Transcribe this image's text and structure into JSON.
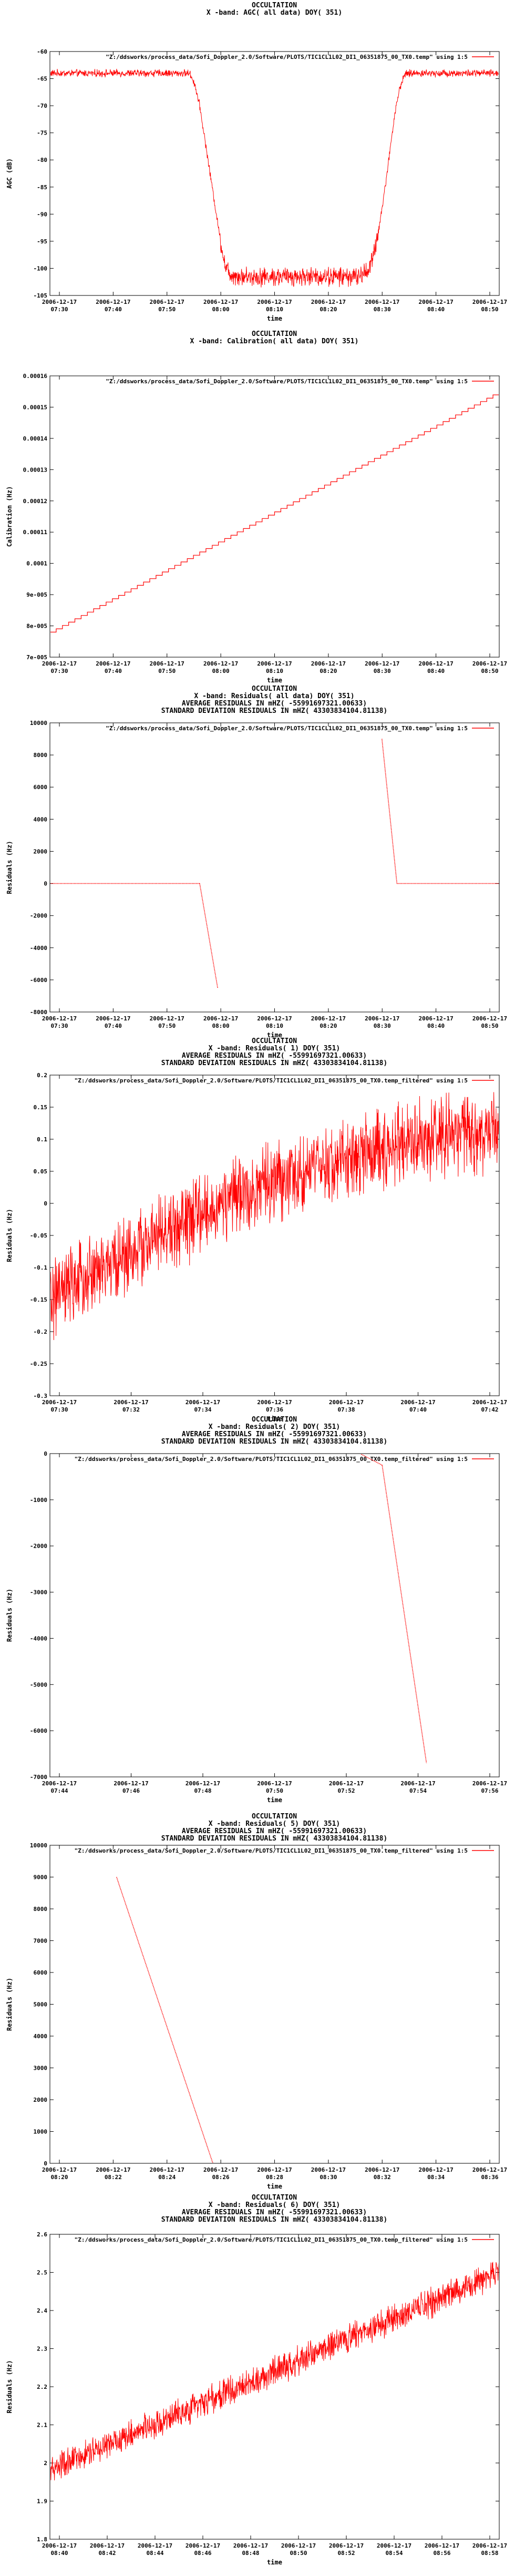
{
  "chart_data": [
    {
      "type": "line",
      "title_lines": [
        "OCCULTATION",
        "X -band: AGC( all data) DOY( 351)"
      ],
      "xlabel": "time",
      "ylabel": "AGC (dB)",
      "legend": "\"Z:/ddsworks/process_data/Sofi_Doppler_2.0/Software/PLOTS/TIC1CL1L02_DI1_06351875_00_TX0.temp\" using 1:5",
      "legend_position": "top-right",
      "grid": false,
      "x_ticks": [
        "2006-12-17 07:30",
        "2006-12-17 07:40",
        "2006-12-17 07:50",
        "2006-12-17 08:00",
        "2006-12-17 08:10",
        "2006-12-17 08:20",
        "2006-12-17 08:30",
        "2006-12-17 08:40",
        "2006-12-17 08:50"
      ],
      "y_ticks": [
        "-60",
        "-65",
        "-70",
        "-75",
        "-80",
        "-85",
        "-90",
        "-95",
        "-100",
        "-105"
      ],
      "ylim": [
        -105,
        -60
      ],
      "xlim_minutes": [
        450,
        540
      ],
      "trend": {
        "x": [
          450,
          478,
          479,
          480,
          481,
          482,
          483,
          484,
          485,
          486,
          488,
          512,
          514,
          515,
          516,
          517,
          518,
          519,
          520,
          521,
          522,
          540
        ],
        "y": [
          -64,
          -64,
          -66,
          -70,
          -76,
          -82,
          -88,
          -94,
          -99,
          -101,
          -101.5,
          -101.5,
          -100,
          -97,
          -92,
          -86,
          -79,
          -72,
          -67,
          -64.3,
          -64,
          -64
        ]
      },
      "noise": 0.5,
      "noise_ranges": [
        [
          484,
          516,
          1.3
        ]
      ]
    },
    {
      "type": "line",
      "title_lines": [
        "OCCULTATION",
        "X -band: Calibration( all data) DOY( 351)"
      ],
      "xlabel": "time",
      "ylabel": "Calibration (Hz)",
      "legend": "\"Z:/ddsworks/process_data/Sofi_Doppler_2.0/Software/PLOTS/TIC1CL1L02_DI1_06351875_00_TX0.temp\" using 1:5",
      "legend_position": "top-right",
      "grid": false,
      "x_ticks": [
        "2006-12-17 07:30",
        "2006-12-17 07:40",
        "2006-12-17 07:50",
        "2006-12-17 08:00",
        "2006-12-17 08:10",
        "2006-12-17 08:20",
        "2006-12-17 08:30",
        "2006-12-17 08:40",
        "2006-12-17 08:50"
      ],
      "y_ticks": [
        "0.00016",
        "0.00015",
        "0.00014",
        "0.00013",
        "0.00012",
        "0.00011",
        "0.0001",
        "9e-005",
        "8e-005",
        "7e-005"
      ],
      "ylim": [
        7e-05,
        0.00016
      ],
      "xlim_minutes": [
        450,
        540
      ],
      "trend": {
        "x": [
          450,
          540
        ],
        "y": [
          7.8e-05,
          0.000155
        ]
      },
      "noise": 0,
      "step_count": 72
    },
    {
      "type": "scatter",
      "title_lines": [
        "OCCULTATION",
        "X -band: Residuals( all data) DOY( 351)",
        "AVERAGE RESIDUALS IN mHZ( -55991697321.00633)",
        "STANDARD DEVIATION RESIDUALS IN mHZ( 43303834104.81138)"
      ],
      "xlabel": "time",
      "ylabel": "Residuals (Hz)",
      "legend": "\"Z:/ddsworks/process_data/Sofi_Doppler_2.0/Software/PLOTS/TIC1CL1L02_DI1_06351875_00_TX0.temp\" using 1:5",
      "legend_position": "top-right",
      "grid": false,
      "x_ticks": [
        "2006-12-17 07:30",
        "2006-12-17 07:40",
        "2006-12-17 07:50",
        "2006-12-17 08:00",
        "2006-12-17 08:10",
        "2006-12-17 08:20",
        "2006-12-17 08:30",
        "2006-12-17 08:40",
        "2006-12-17 08:50"
      ],
      "y_ticks": [
        "10000",
        "8000",
        "6000",
        "4000",
        "2000",
        "0",
        "-2000",
        "-4000",
        "-6000",
        "-8000"
      ],
      "ylim": [
        -8000,
        10000
      ],
      "xlim_minutes": [
        450,
        540
      ],
      "segments": [
        {
          "x": [
            450,
            480
          ],
          "y": [
            0,
            0
          ]
        },
        {
          "x": [
            480,
            483.6
          ],
          "y": [
            0,
            -6500
          ]
        },
        {
          "x": [
            516.5,
            519.5
          ],
          "y": [
            9000,
            0
          ]
        },
        {
          "x": [
            519.5,
            540
          ],
          "y": [
            0,
            0
          ]
        }
      ]
    },
    {
      "type": "line",
      "title_lines": [
        "OCCULTATION",
        "X -band: Residuals( 1) DOY( 351)",
        "AVERAGE RESIDUALS IN mHZ( -55991697321.00633)",
        "STANDARD DEVIATION RESIDUALS IN mHZ( 43303834104.81138)"
      ],
      "xlabel": "time",
      "ylabel": "Residuals (Hz)",
      "legend": "\"Z:/ddsworks/process_data/Sofi_Doppler_2.0/Software/PLOTS/TIC1CL1L02_DI1_06351875_00_TX0.temp_filtered\" using 1:5",
      "legend_position": "top-right",
      "grid": false,
      "x_ticks": [
        "2006-12-17 07:30",
        "2006-12-17 07:32",
        "2006-12-17 07:34",
        "2006-12-17 07:36",
        "2006-12-17 07:38",
        "2006-12-17 07:40",
        "2006-12-17 07:42"
      ],
      "y_ticks": [
        "0.2",
        "0.15",
        "0.1",
        "0.05",
        "0",
        "-0.05",
        "-0.1",
        "-0.15",
        "-0.2",
        "-0.25",
        "-0.3"
      ],
      "ylim": [
        -0.3,
        0.2
      ],
      "xlim_minutes": [
        450,
        463.5
      ],
      "trend": {
        "x": [
          450,
          453,
          456,
          459,
          461,
          463.5
        ],
        "y": [
          -0.15,
          -0.06,
          0.02,
          0.07,
          0.1,
          0.11
        ]
      },
      "noise": 0.045
    },
    {
      "type": "scatter",
      "title_lines": [
        "OCCULTATION",
        "X -band: Residuals( 2) DOY( 351)",
        "AVERAGE RESIDUALS IN mHZ( -55991697321.00633)",
        "STANDARD DEVIATION RESIDUALS IN mHZ( 43303834104.81138)"
      ],
      "xlabel": "time",
      "ylabel": "Residuals (Hz)",
      "legend": "\"Z:/ddsworks/process_data/Sofi_Doppler_2.0/Software/PLOTS/TIC1CL1L02_DI1_06351875_00_TX0.temp_filtered\" using 1:5",
      "legend_position": "top-right",
      "grid": false,
      "x_ticks": [
        "2006-12-17 07:44",
        "2006-12-17 07:46",
        "2006-12-17 07:48",
        "2006-12-17 07:50",
        "2006-12-17 07:52",
        "2006-12-17 07:54",
        "2006-12-17 07:56"
      ],
      "y_ticks": [
        "0",
        "-1000",
        "-2000",
        "-3000",
        "-4000",
        "-5000",
        "-6000",
        "-7000"
      ],
      "ylim": [
        -7000,
        0
      ],
      "xlim_minutes": [
        463,
        477.2
      ],
      "segments": [
        {
          "x": [
            463,
            472.8
          ],
          "y": [
            0,
            0
          ]
        },
        {
          "x": [
            472.8,
            473.5
          ],
          "y": [
            0,
            -250
          ]
        },
        {
          "x": [
            473.5,
            474.9
          ],
          "y": [
            -250,
            -6700
          ]
        }
      ]
    },
    {
      "type": "scatter",
      "title_lines": [
        "OCCULTATION",
        "X -band: Residuals( 5) DOY( 351)",
        "AVERAGE RESIDUALS IN mHZ( -55991697321.00633)",
        "STANDARD DEVIATION RESIDUALS IN mHZ( 43303834104.81138)"
      ],
      "xlabel": "time",
      "ylabel": "Residuals (Hz)",
      "legend": "\"Z:/ddsworks/process_data/Sofi_Doppler_2.0/Software/PLOTS/TIC1CL1L02_DI1_06351875_00_TX0.temp_filtered\" using 1:5",
      "legend_position": "top-right",
      "grid": false,
      "x_ticks": [
        "2006-12-17 08:20",
        "2006-12-17 08:22",
        "2006-12-17 08:24",
        "2006-12-17 08:26",
        "2006-12-17 08:28",
        "2006-12-17 08:30",
        "2006-12-17 08:32",
        "2006-12-17 08:34",
        "2006-12-17 08:36"
      ],
      "y_ticks": [
        "10000",
        "9000",
        "8000",
        "7000",
        "6000",
        "5000",
        "4000",
        "3000",
        "2000",
        "1000",
        "0"
      ],
      "ylim": [
        0,
        10000
      ],
      "xlim_minutes": [
        499,
        517.2
      ],
      "segments": [
        {
          "x": [
            501.7,
            505.6
          ],
          "y": [
            9000,
            0
          ]
        }
      ]
    },
    {
      "type": "line",
      "title_lines": [
        "OCCULTATION",
        "X -band: Residuals( 6) DOY( 351)",
        "AVERAGE RESIDUALS IN mHZ( -55991697321.00633)",
        "STANDARD DEVIATION RESIDUALS IN mHZ( 43303834104.81138)"
      ],
      "xlabel": "time",
      "ylabel": "Residuals (Hz)",
      "legend": "\"Z:/ddsworks/process_data/Sofi_Doppler_2.0/Software/PLOTS/TIC1CL1L02_DI1_06351875_00_TX0.temp_filtered\" using 1:5",
      "legend_position": "top-right",
      "grid": false,
      "x_ticks": [
        "2006-12-17 08:40",
        "2006-12-17 08:42",
        "2006-12-17 08:44",
        "2006-12-17 08:46",
        "2006-12-17 08:48",
        "2006-12-17 08:50",
        "2006-12-17 08:52",
        "2006-12-17 08:54",
        "2006-12-17 08:56",
        "2006-12-17 08:58"
      ],
      "y_ticks": [
        "2.6",
        "2.5",
        "2.4",
        "2.3",
        "2.2",
        "2.1",
        "2",
        "1.9",
        "1.8"
      ],
      "ylim": [
        1.8,
        2.6
      ],
      "xlim_minutes": [
        519,
        538.5
      ],
      "trend": {
        "x": [
          519,
          538.5
        ],
        "y": [
          1.98,
          2.5
        ]
      },
      "noise": 0.028
    }
  ]
}
